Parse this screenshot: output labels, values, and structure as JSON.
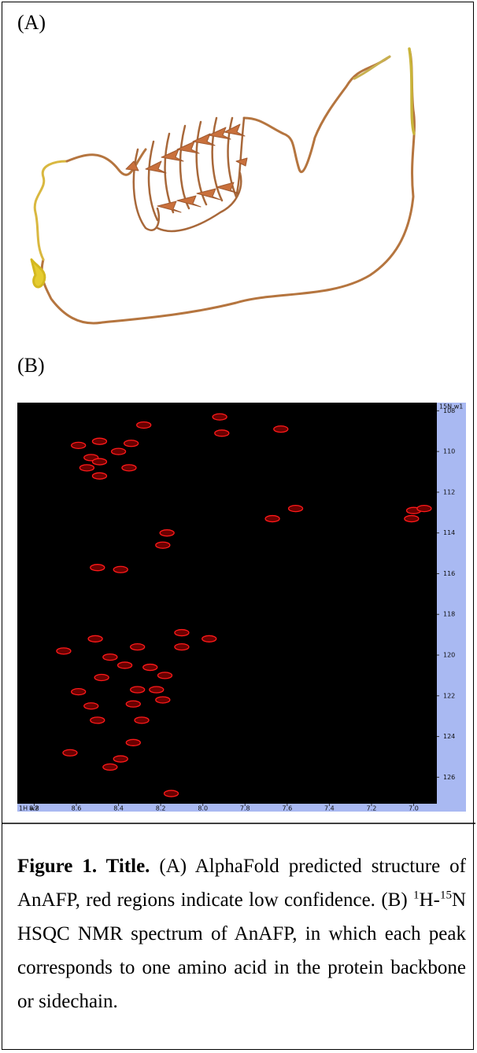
{
  "panel_a_label": "(A)",
  "panel_b_label": "(B)",
  "chart_data": {
    "type": "scatter",
    "x_axis_label": "1H w2",
    "y_axis_label": "15N w1",
    "xlim": [
      8.88,
      6.89
    ],
    "ylim": [
      107.6,
      127.3
    ],
    "xticks": [
      8.8,
      8.6,
      8.4,
      8.2,
      {
        "value": 8,
        "label": "8.0"
      },
      7.8,
      7.6,
      7.4,
      7.2,
      {
        "value": 7,
        "label": "7.0"
      }
    ],
    "yticks": [
      108,
      110,
      112,
      114,
      116,
      118,
      120,
      122,
      124,
      126
    ],
    "x": [
      8.28,
      7.92,
      7.91,
      7.63,
      8.59,
      8.49,
      8.4,
      8.53,
      8.49,
      8.55,
      8.49,
      8.35,
      8.34,
      8.17,
      8.19,
      7.67,
      7.56,
      7.0,
      6.95,
      7.01,
      8.5,
      8.39,
      8.66,
      8.51,
      8.1,
      8.1,
      7.97,
      8.31,
      8.44,
      8.37,
      8.25,
      8.59,
      8.48,
      8.18,
      8.31,
      8.22,
      8.53,
      8.33,
      8.19,
      8.5,
      8.29,
      8.33,
      8.39,
      8.44,
      8.63,
      8.15
    ],
    "y": [
      108.7,
      108.3,
      109.1,
      108.9,
      109.7,
      109.5,
      110.0,
      110.3,
      110.5,
      110.8,
      111.2,
      110.8,
      109.6,
      114.0,
      114.6,
      113.3,
      112.8,
      112.9,
      112.8,
      113.3,
      115.7,
      115.8,
      119.8,
      119.2,
      118.9,
      119.6,
      119.2,
      119.6,
      120.1,
      120.5,
      120.6,
      121.8,
      121.1,
      121.0,
      121.7,
      121.7,
      122.5,
      122.4,
      122.2,
      123.2,
      123.2,
      124.3,
      125.1,
      125.5,
      124.8,
      126.8
    ],
    "color": "#ff1a1a"
  },
  "caption": {
    "label": "Figure 1. Title.",
    "segments": [
      " (A) AlphaFold predicted structure of AnAFP, red regions indicate low confidence. (B) ",
      "1",
      "H-",
      "15",
      "N HSQC NMR spectrum of AnAFP, in which each peak corresponds to one amino acid in the protein backbone or sidechain."
    ]
  }
}
